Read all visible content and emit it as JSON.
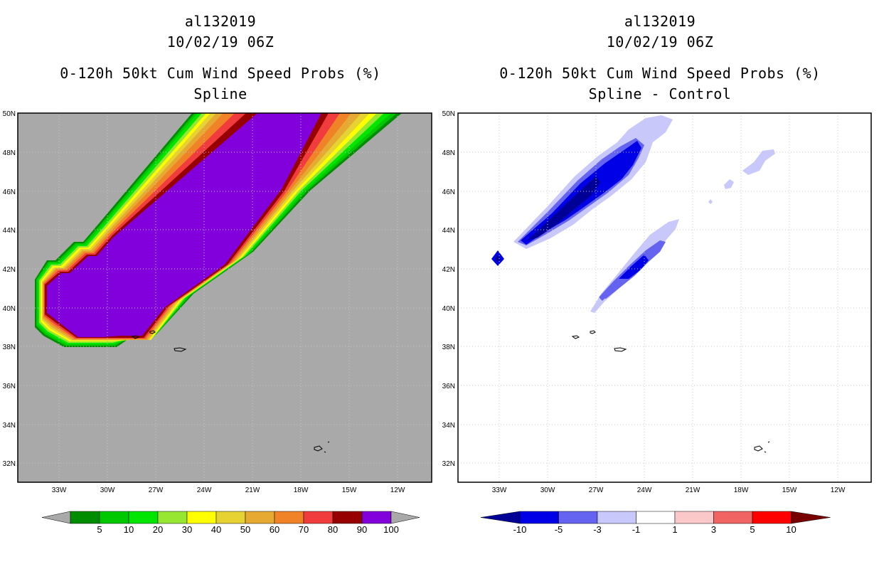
{
  "left_panel": {
    "title_lines": [
      "al132019",
      "10/02/19 06Z",
      "0-120h 50kt Cum Wind Speed Probs (%)",
      "Spline"
    ]
  },
  "right_panel": {
    "title_lines": [
      "al132019",
      "10/02/19 06Z",
      "0-120h 50kt Cum Wind Speed Probs (%)",
      "Spline - Control"
    ]
  },
  "chart_data": [
    {
      "type": "heatmap",
      "title": "0-120h 50kt Cum Wind Speed Probs (%)",
      "subtitle": "Spline",
      "lon_ticks": [
        "33W",
        "30W",
        "27W",
        "24W",
        "21W",
        "18W",
        "15W",
        "12W"
      ],
      "lat_ticks": [
        "50N",
        "48N",
        "46N",
        "44N",
        "42N",
        "40N",
        "38N",
        "36N",
        "34N",
        "32N"
      ],
      "xlim": [
        -35.5,
        -10.5
      ],
      "ylim": [
        31,
        50
      ],
      "background_color": "#a9a9a9",
      "colorbar": {
        "labels": [
          "5",
          "10",
          "20",
          "30",
          "40",
          "50",
          "60",
          "70",
          "80",
          "90",
          "100"
        ],
        "colors": [
          "#008c00",
          "#00c800",
          "#00e600",
          "#96e632",
          "#ffff00",
          "#e6d232",
          "#e6aa32",
          "#f08228",
          "#f03c3c",
          "#960000",
          "#8200dc"
        ],
        "end_colors": [
          "#a9a9a9",
          "#a9a9a9"
        ]
      }
    },
    {
      "type": "heatmap",
      "title": "0-120h 50kt Cum Wind Speed Probs (%)",
      "subtitle": "Spline - Control",
      "lon_ticks": [
        "33W",
        "30W",
        "27W",
        "24W",
        "21W",
        "18W",
        "15W",
        "12W"
      ],
      "lat_ticks": [
        "50N",
        "48N",
        "46N",
        "44N",
        "42N",
        "40N",
        "38N",
        "36N",
        "34N",
        "32N"
      ],
      "xlim": [
        -35.5,
        -10.5
      ],
      "ylim": [
        31,
        50
      ],
      "background_color": "#ffffff",
      "colorbar": {
        "labels": [
          "-10",
          "-5",
          "-3",
          "-1",
          "1",
          "3",
          "5",
          "10"
        ],
        "colors": [
          "#0000e6",
          "#6464f0",
          "#c8c8fa",
          "#ffffff",
          "#fac8c8",
          "#f06464",
          "#ff0000"
        ],
        "end_colors": [
          "#000096",
          "#780000"
        ]
      }
    }
  ]
}
